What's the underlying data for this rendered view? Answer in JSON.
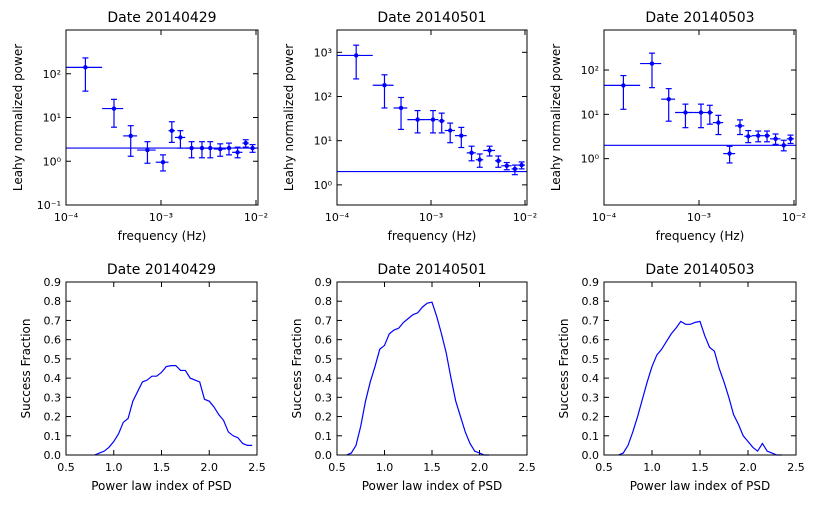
{
  "chart_data": [
    {
      "type": "errorbar",
      "title": "Date 20140429",
      "xlabel": "frequency (Hz)",
      "ylabel": "Leahy normalized power",
      "xscale": "log",
      "yscale": "log",
      "color": "#0000ff",
      "xlim": [
        0.0001,
        0.0105
      ],
      "ylim": [
        0.1,
        1000
      ],
      "xticks": [
        {
          "value": 0.0001,
          "label": "10⁻⁴"
        },
        {
          "value": 0.001,
          "label": "10⁻³"
        },
        {
          "value": 0.01,
          "label": "10⁻²"
        }
      ],
      "yticks": [
        {
          "value": 0.1,
          "label": "10⁻¹"
        },
        {
          "value": 1,
          "label": "10⁰"
        },
        {
          "value": 10,
          "label": "10¹"
        },
        {
          "value": 100,
          "label": "10²"
        }
      ],
      "hline": 2,
      "x": [
        0.00016,
        0.00032,
        0.00048,
        0.00072,
        0.00105,
        0.0013,
        0.0016,
        0.0021,
        0.0027,
        0.0033,
        0.0042,
        0.0052,
        0.0064,
        0.0078,
        0.0092
      ],
      "x_edges": [
        0.0001,
        0.00024,
        0.0004,
        0.00056,
        0.00088,
        0.0012,
        0.0014,
        0.0018,
        0.0024,
        0.003,
        0.0036,
        0.0048,
        0.0056,
        0.0072,
        0.0084,
        0.01
      ],
      "values": [
        140,
        16,
        3.8,
        1.8,
        0.95,
        5,
        3.5,
        2,
        2,
        2,
        1.9,
        2,
        1.6,
        2.6,
        2.0
      ],
      "ylow": [
        40,
        6,
        1.3,
        0.9,
        0.6,
        2.7,
        2,
        1.2,
        1.2,
        1.2,
        1.3,
        1.4,
        1.2,
        2.1,
        1.6
      ],
      "yhigh": [
        230,
        26,
        6.5,
        2.8,
        1.4,
        8,
        5,
        2.8,
        2.8,
        2.8,
        2.5,
        2.6,
        2.1,
        3.1,
        2.4
      ]
    },
    {
      "type": "errorbar",
      "title": "Date 20140501",
      "xlabel": "frequency (Hz)",
      "ylabel": "Leahy normalized power",
      "xscale": "log",
      "yscale": "log",
      "color": "#0000ff",
      "xlim": [
        0.0001,
        0.0105
      ],
      "ylim": [
        0.35,
        3200
      ],
      "xticks": [
        {
          "value": 0.0001,
          "label": "10⁻⁴"
        },
        {
          "value": 0.001,
          "label": "10⁻³"
        },
        {
          "value": 0.01,
          "label": "10⁻²"
        }
      ],
      "yticks": [
        {
          "value": 1,
          "label": "10⁰"
        },
        {
          "value": 10,
          "label": "10¹"
        },
        {
          "value": 100,
          "label": "10²"
        },
        {
          "value": 1000,
          "label": "10³"
        }
      ],
      "hline": 2,
      "x": [
        0.00016,
        0.00032,
        0.00048,
        0.00072,
        0.00105,
        0.0013,
        0.0016,
        0.0021,
        0.0027,
        0.0033,
        0.0042,
        0.0052,
        0.0064,
        0.0078,
        0.0092
      ],
      "x_edges": [
        0.0001,
        0.00024,
        0.0004,
        0.00056,
        0.00088,
        0.0012,
        0.0014,
        0.0018,
        0.0024,
        0.003,
        0.0036,
        0.0048,
        0.0056,
        0.0072,
        0.0084,
        0.01
      ],
      "values": [
        850,
        180,
        55,
        30,
        30,
        28,
        17,
        13,
        5.3,
        3.7,
        6,
        3.5,
        2.7,
        2.3,
        2.8
      ],
      "ylow": [
        250,
        55,
        18,
        15,
        15,
        15,
        9,
        7,
        3.5,
        2.5,
        4.5,
        2.5,
        2.2,
        1.7,
        2.3
      ],
      "yhigh": [
        1450,
        310,
        95,
        48,
        48,
        42,
        25,
        20,
        7.5,
        5,
        7.5,
        4.5,
        3.2,
        2.8,
        3.3
      ]
    },
    {
      "type": "errorbar",
      "title": "Date 20140503",
      "xlabel": "frequency (Hz)",
      "ylabel": "Leahy normalized power",
      "xscale": "log",
      "yscale": "log",
      "color": "#0000ff",
      "xlim": [
        0.0001,
        0.0105
      ],
      "ylim": [
        0.09,
        800
      ],
      "xticks": [
        {
          "value": 0.0001,
          "label": "10⁻⁴"
        },
        {
          "value": 0.001,
          "label": "10⁻³"
        },
        {
          "value": 0.01,
          "label": "10⁻²"
        }
      ],
      "yticks": [
        {
          "value": 1,
          "label": "10⁰"
        },
        {
          "value": 10,
          "label": "10¹"
        },
        {
          "value": 100,
          "label": "10²"
        }
      ],
      "hline": 2,
      "x": [
        0.00016,
        0.00032,
        0.00048,
        0.00072,
        0.00105,
        0.0013,
        0.0016,
        0.0021,
        0.0027,
        0.0033,
        0.0042,
        0.0052,
        0.0064,
        0.0078,
        0.0092
      ],
      "x_edges": [
        0.0001,
        0.00024,
        0.0004,
        0.00056,
        0.00088,
        0.0012,
        0.0014,
        0.0018,
        0.0024,
        0.003,
        0.0036,
        0.0048,
        0.0056,
        0.0072,
        0.0084,
        0.01
      ],
      "values": [
        45,
        140,
        22,
        11,
        11,
        11,
        6.5,
        1.3,
        5.5,
        3.2,
        3.3,
        3.3,
        2.8,
        2.0,
        2.8
      ],
      "ylow": [
        13,
        40,
        7,
        5,
        5,
        6,
        3.5,
        0.8,
        3.5,
        2.3,
        2.4,
        2.4,
        2.1,
        1.5,
        2.2
      ],
      "yhigh": [
        75,
        240,
        38,
        17,
        17,
        16,
        9.5,
        1.9,
        7.5,
        4.3,
        4.2,
        4.2,
        3.6,
        2.6,
        3.4
      ]
    },
    {
      "type": "line",
      "title": "Date 20140429",
      "xlabel": "Power law index of PSD",
      "ylabel": "Success Fraction",
      "color": "#0000ff",
      "xlim": [
        0.5,
        2.5
      ],
      "ylim": [
        0,
        0.9
      ],
      "xticks": [
        0.5,
        {
          "value": 1,
          "label": "1.0"
        },
        1.5,
        {
          "value": 2,
          "label": "2.0"
        },
        2.5
      ],
      "yticks": [
        {
          "value": 0,
          "label": "0.0"
        },
        0.1,
        0.2,
        0.3,
        0.4,
        0.5,
        0.6,
        0.7,
        0.8,
        0.9
      ],
      "x": [
        0.8,
        0.85,
        0.9,
        0.95,
        1.0,
        1.05,
        1.1,
        1.15,
        1.2,
        1.25,
        1.3,
        1.35,
        1.4,
        1.45,
        1.5,
        1.55,
        1.6,
        1.65,
        1.7,
        1.75,
        1.8,
        1.85,
        1.9,
        1.95,
        2.0,
        2.05,
        2.1,
        2.15,
        2.2,
        2.25,
        2.3,
        2.35,
        2.4,
        2.45
      ],
      "values": [
        0,
        0.01,
        0.02,
        0.04,
        0.07,
        0.11,
        0.17,
        0.19,
        0.28,
        0.33,
        0.38,
        0.39,
        0.41,
        0.41,
        0.43,
        0.46,
        0.465,
        0.465,
        0.44,
        0.44,
        0.4,
        0.39,
        0.38,
        0.29,
        0.28,
        0.25,
        0.21,
        0.18,
        0.12,
        0.1,
        0.09,
        0.06,
        0.05,
        0.05
      ]
    },
    {
      "type": "line",
      "title": "Date 20140501",
      "xlabel": "Power law index of PSD",
      "ylabel": "Success Fraction",
      "color": "#0000ff",
      "xlim": [
        0.5,
        2.5
      ],
      "ylim": [
        0,
        0.9
      ],
      "xticks": [
        0.5,
        {
          "value": 1,
          "label": "1.0"
        },
        1.5,
        {
          "value": 2,
          "label": "2.0"
        },
        2.5
      ],
      "yticks": [
        {
          "value": 0,
          "label": "0.0"
        },
        0.1,
        0.2,
        0.3,
        0.4,
        0.5,
        0.6,
        0.7,
        0.8,
        0.9
      ],
      "x": [
        0.6,
        0.65,
        0.7,
        0.75,
        0.8,
        0.85,
        0.9,
        0.95,
        1.0,
        1.05,
        1.1,
        1.15,
        1.2,
        1.25,
        1.3,
        1.35,
        1.4,
        1.45,
        1.5,
        1.55,
        1.6,
        1.65,
        1.7,
        1.75,
        1.8,
        1.85,
        1.9,
        1.95,
        2.0,
        2.05,
        2.1
      ],
      "values": [
        0,
        0.01,
        0.05,
        0.15,
        0.28,
        0.38,
        0.46,
        0.55,
        0.57,
        0.63,
        0.65,
        0.66,
        0.69,
        0.71,
        0.73,
        0.74,
        0.77,
        0.79,
        0.795,
        0.72,
        0.63,
        0.53,
        0.4,
        0.28,
        0.2,
        0.12,
        0.06,
        0.02,
        0.01,
        0,
        0
      ]
    },
    {
      "type": "line",
      "title": "Date 20140503",
      "xlabel": "Power law index of PSD",
      "ylabel": "Success Fraction",
      "color": "#0000ff",
      "xlim": [
        0.5,
        2.5
      ],
      "ylim": [
        0,
        0.9
      ],
      "xticks": [
        0.5,
        {
          "value": 1,
          "label": "1.0"
        },
        1.5,
        {
          "value": 2,
          "label": "2.0"
        },
        2.5
      ],
      "yticks": [
        {
          "value": 0,
          "label": "0.0"
        },
        0.1,
        0.2,
        0.3,
        0.4,
        0.5,
        0.6,
        0.7,
        0.8,
        0.9
      ],
      "x": [
        0.65,
        0.7,
        0.75,
        0.8,
        0.85,
        0.9,
        0.95,
        1.0,
        1.05,
        1.1,
        1.15,
        1.2,
        1.25,
        1.3,
        1.35,
        1.4,
        1.45,
        1.5,
        1.55,
        1.6,
        1.65,
        1.7,
        1.75,
        1.8,
        1.85,
        1.9,
        1.95,
        2.0,
        2.05,
        2.1,
        2.15,
        2.2,
        2.25,
        2.3,
        2.35
      ],
      "values": [
        0,
        0.01,
        0.05,
        0.12,
        0.2,
        0.29,
        0.38,
        0.46,
        0.52,
        0.55,
        0.59,
        0.63,
        0.66,
        0.695,
        0.68,
        0.68,
        0.69,
        0.695,
        0.62,
        0.56,
        0.54,
        0.45,
        0.38,
        0.3,
        0.21,
        0.16,
        0.1,
        0.07,
        0.04,
        0.02,
        0.06,
        0.02,
        0.01,
        0,
        0
      ]
    }
  ]
}
